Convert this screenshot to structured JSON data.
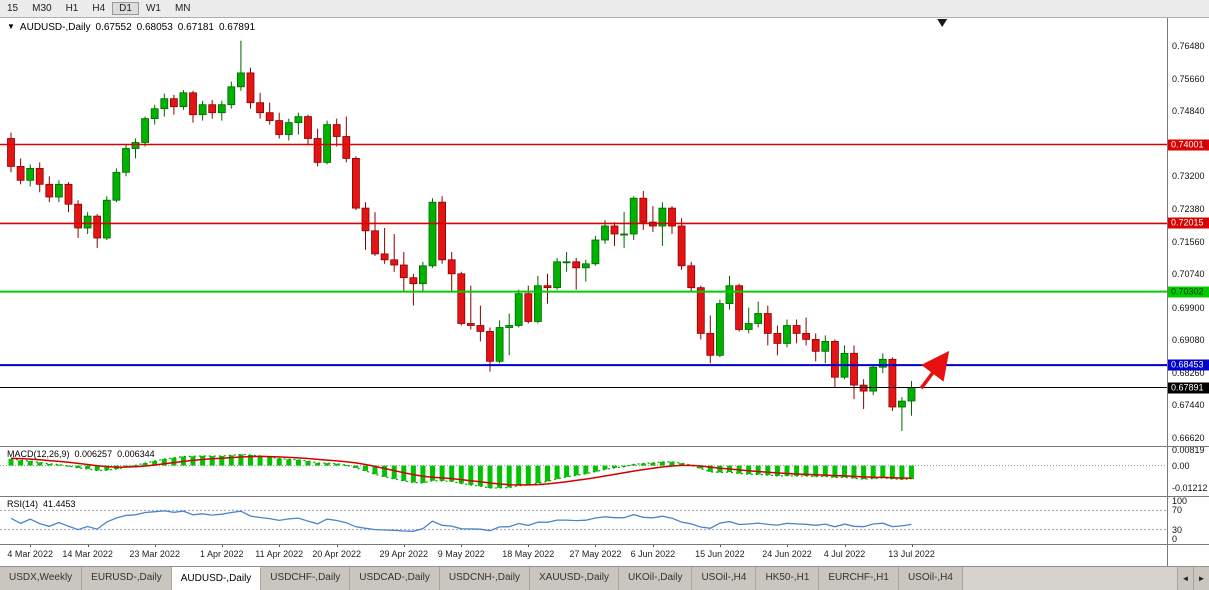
{
  "toolbar": {
    "timeframes": [
      "15",
      "M30",
      "H1",
      "H4",
      "D1",
      "W1",
      "MN"
    ],
    "active_timeframe": "D1"
  },
  "chart_header": {
    "dropdown_icon": "▼",
    "symbol": "AUDUSD-,Daily",
    "open": "0.67552",
    "high": "0.68053",
    "low": "0.67181",
    "close": "0.67891"
  },
  "chart_data": {
    "type": "candlestick",
    "symbol": "AUDUSD",
    "timeframe": "Daily",
    "price_min": 0.6642,
    "price_max": 0.7718,
    "y_axis_ticks": [
      "0.76480",
      "0.75660",
      "0.74840",
      "0.73200",
      "0.72380",
      "0.71560",
      "0.70740",
      "0.69900",
      "0.69080",
      "0.68260",
      "0.67440",
      "0.66620"
    ],
    "hlines": [
      {
        "price": 0.74001,
        "label": "0.74001",
        "color": "#d80000",
        "text_color": "#ffffff",
        "line_width": 1.6
      },
      {
        "price": 0.72015,
        "label": "0.72015",
        "color": "#d80000",
        "text_color": "#ffffff",
        "line_width": 1.6
      },
      {
        "price": 0.70302,
        "label": "0.70302",
        "color": "#00cc00",
        "text_color": "#003300",
        "line_width": 2
      },
      {
        "price": 0.68453,
        "label": "0.68453",
        "color": "#0000cc",
        "text_color": "#ffffff",
        "line_width": 2
      },
      {
        "price": 0.67891,
        "label": "0.67891",
        "color": "#000000",
        "text_color": "#ffffff",
        "line_width": 1
      }
    ],
    "x_ticks": [
      {
        "index": 2,
        "label": "4 Mar 2022"
      },
      {
        "index": 8,
        "label": "14 Mar 2022"
      },
      {
        "index": 15,
        "label": "23 Mar 2022"
      },
      {
        "index": 22,
        "label": "1 Apr 2022"
      },
      {
        "index": 28,
        "label": "11 Apr 2022"
      },
      {
        "index": 34,
        "label": "20 Apr 2022"
      },
      {
        "index": 41,
        "label": "29 Apr 2022"
      },
      {
        "index": 47,
        "label": "9 May 2022"
      },
      {
        "index": 54,
        "label": "18 May 2022"
      },
      {
        "index": 61,
        "label": "27 May 2022"
      },
      {
        "index": 67,
        "label": "6 Jun 2022"
      },
      {
        "index": 74,
        "label": "15 Jun 2022"
      },
      {
        "index": 81,
        "label": "24 Jun 2022"
      },
      {
        "index": 87,
        "label": "4 Jul 2022"
      },
      {
        "index": 94,
        "label": "13 Jul 2022"
      }
    ],
    "candles_ohlc": [
      [
        0.7415,
        0.743,
        0.733,
        0.7345
      ],
      [
        0.7345,
        0.7365,
        0.73,
        0.731
      ],
      [
        0.731,
        0.735,
        0.7295,
        0.734
      ],
      [
        0.734,
        0.7355,
        0.728,
        0.73
      ],
      [
        0.73,
        0.732,
        0.7255,
        0.7268
      ],
      [
        0.7268,
        0.731,
        0.7255,
        0.73
      ],
      [
        0.73,
        0.7305,
        0.723,
        0.725
      ],
      [
        0.725,
        0.726,
        0.7165,
        0.719
      ],
      [
        0.719,
        0.723,
        0.7175,
        0.722
      ],
      [
        0.722,
        0.7225,
        0.714,
        0.7165
      ],
      [
        0.7165,
        0.727,
        0.716,
        0.726
      ],
      [
        0.726,
        0.734,
        0.7255,
        0.733
      ],
      [
        0.733,
        0.74,
        0.732,
        0.739
      ],
      [
        0.739,
        0.7415,
        0.7365,
        0.7405
      ],
      [
        0.7405,
        0.747,
        0.7395,
        0.7465
      ],
      [
        0.7465,
        0.75,
        0.745,
        0.749
      ],
      [
        0.749,
        0.7528,
        0.747,
        0.7515
      ],
      [
        0.7515,
        0.7525,
        0.7475,
        0.7495
      ],
      [
        0.7495,
        0.7537,
        0.7487,
        0.753
      ],
      [
        0.753,
        0.7535,
        0.7455,
        0.7475
      ],
      [
        0.7475,
        0.751,
        0.746,
        0.75
      ],
      [
        0.75,
        0.7512,
        0.7465,
        0.748
      ],
      [
        0.748,
        0.751,
        0.746,
        0.75
      ],
      [
        0.75,
        0.7558,
        0.749,
        0.7545
      ],
      [
        0.7545,
        0.7661,
        0.7535,
        0.758
      ],
      [
        0.758,
        0.7593,
        0.749,
        0.7505
      ],
      [
        0.7505,
        0.753,
        0.7465,
        0.748
      ],
      [
        0.748,
        0.7505,
        0.745,
        0.746
      ],
      [
        0.746,
        0.748,
        0.7415,
        0.7425
      ],
      [
        0.7425,
        0.7465,
        0.741,
        0.7455
      ],
      [
        0.7455,
        0.748,
        0.7425,
        0.747
      ],
      [
        0.747,
        0.7475,
        0.7398,
        0.7415
      ],
      [
        0.7415,
        0.744,
        0.7345,
        0.7355
      ],
      [
        0.7355,
        0.746,
        0.735,
        0.745
      ],
      [
        0.745,
        0.7465,
        0.7395,
        0.742
      ],
      [
        0.742,
        0.747,
        0.7355,
        0.7365
      ],
      [
        0.7365,
        0.737,
        0.7235,
        0.724
      ],
      [
        0.724,
        0.7255,
        0.7135,
        0.7183
      ],
      [
        0.7183,
        0.723,
        0.712,
        0.7125
      ],
      [
        0.7125,
        0.719,
        0.71,
        0.711
      ],
      [
        0.711,
        0.7175,
        0.708,
        0.7097
      ],
      [
        0.7097,
        0.713,
        0.703,
        0.7065
      ],
      [
        0.7065,
        0.7075,
        0.6995,
        0.705
      ],
      [
        0.705,
        0.7105,
        0.703,
        0.7095
      ],
      [
        0.7095,
        0.7265,
        0.709,
        0.7255
      ],
      [
        0.7255,
        0.727,
        0.71,
        0.711
      ],
      [
        0.711,
        0.713,
        0.703,
        0.7075
      ],
      [
        0.7075,
        0.708,
        0.6945,
        0.695
      ],
      [
        0.695,
        0.7045,
        0.6935,
        0.6945
      ],
      [
        0.6945,
        0.6995,
        0.6905,
        0.693
      ],
      [
        0.693,
        0.694,
        0.6829,
        0.6855
      ],
      [
        0.6855,
        0.6958,
        0.685,
        0.694
      ],
      [
        0.694,
        0.6975,
        0.687,
        0.6945
      ],
      [
        0.6945,
        0.7035,
        0.694,
        0.7025
      ],
      [
        0.7025,
        0.7045,
        0.695,
        0.6955
      ],
      [
        0.6955,
        0.707,
        0.695,
        0.7045
      ],
      [
        0.7045,
        0.7075,
        0.7,
        0.704
      ],
      [
        0.704,
        0.7115,
        0.7035,
        0.7105
      ],
      [
        0.7105,
        0.713,
        0.708,
        0.7105
      ],
      [
        0.7105,
        0.7115,
        0.7035,
        0.709
      ],
      [
        0.709,
        0.711,
        0.7055,
        0.71
      ],
      [
        0.71,
        0.717,
        0.7095,
        0.716
      ],
      [
        0.716,
        0.721,
        0.715,
        0.7195
      ],
      [
        0.7195,
        0.7205,
        0.7145,
        0.7175
      ],
      [
        0.7175,
        0.723,
        0.714,
        0.7175
      ],
      [
        0.7175,
        0.727,
        0.716,
        0.7265
      ],
      [
        0.7265,
        0.7283,
        0.7185,
        0.7205
      ],
      [
        0.7205,
        0.7245,
        0.718,
        0.7195
      ],
      [
        0.7195,
        0.7255,
        0.7145,
        0.724
      ],
      [
        0.724,
        0.7245,
        0.7175,
        0.7195
      ],
      [
        0.7195,
        0.7215,
        0.7085,
        0.7095
      ],
      [
        0.7095,
        0.7105,
        0.703,
        0.704
      ],
      [
        0.704,
        0.7045,
        0.691,
        0.6925
      ],
      [
        0.6925,
        0.697,
        0.685,
        0.687
      ],
      [
        0.687,
        0.701,
        0.6865,
        0.7
      ],
      [
        0.7,
        0.707,
        0.6985,
        0.7045
      ],
      [
        0.7045,
        0.705,
        0.693,
        0.6935
      ],
      [
        0.6935,
        0.699,
        0.6925,
        0.695
      ],
      [
        0.695,
        0.7005,
        0.694,
        0.6975
      ],
      [
        0.6975,
        0.6995,
        0.6895,
        0.6925
      ],
      [
        0.6925,
        0.6945,
        0.687,
        0.69
      ],
      [
        0.69,
        0.696,
        0.689,
        0.6945
      ],
      [
        0.6945,
        0.696,
        0.69,
        0.6925
      ],
      [
        0.6925,
        0.6965,
        0.6895,
        0.691
      ],
      [
        0.691,
        0.6925,
        0.6855,
        0.688
      ],
      [
        0.688,
        0.692,
        0.685,
        0.6905
      ],
      [
        0.6905,
        0.691,
        0.679,
        0.6815
      ],
      [
        0.6815,
        0.6895,
        0.681,
        0.6875
      ],
      [
        0.6875,
        0.6895,
        0.676,
        0.6795
      ],
      [
        0.6795,
        0.681,
        0.6735,
        0.678
      ],
      [
        0.678,
        0.6845,
        0.677,
        0.684
      ],
      [
        0.684,
        0.6875,
        0.6825,
        0.686
      ],
      [
        0.686,
        0.6865,
        0.673,
        0.674
      ],
      [
        0.674,
        0.6765,
        0.668,
        0.6755
      ],
      [
        0.67552,
        0.68053,
        0.67181,
        0.67891
      ]
    ],
    "indicators": {
      "macd": {
        "label": "MACD(12,26,9)",
        "values_text": [
          "0.006257",
          "0.006344"
        ],
        "axis_ticks": [
          "0.00819",
          "0.00",
          "-0.01212"
        ],
        "fast": 12,
        "slow": 26,
        "signal": 9,
        "scale_max": 0.0105,
        "scale_min": -0.0163
      },
      "rsi": {
        "label": "RSI(14)",
        "value_text": "41.4453",
        "axis_ticks": [
          "100",
          "70",
          "30",
          "0"
        ],
        "period": 14,
        "levels": [
          70,
          30
        ]
      }
    },
    "annotations": [
      {
        "type": "arrow",
        "color": "#e81010",
        "from": {
          "index": 95.0,
          "price": 0.6787
        },
        "to": {
          "index": 97.5,
          "price": 0.6867
        }
      }
    ],
    "colors": {
      "bull": "#00b200",
      "bull_border": "#006600",
      "bear": "#e41414",
      "bear_border": "#8c0000",
      "macd_histogram": "#00c400",
      "macd_signal": "#d40000",
      "macd_main_dotted": "#00a000",
      "rsi_line": "#4a85c8",
      "background": "#ffffff",
      "axis_text": "#111111"
    }
  },
  "tabs": {
    "items": [
      "USDX,Weekly",
      "EURUSD-,Daily",
      "AUDUSD-,Daily",
      "USDCHF-,Daily",
      "USDCAD-,Daily",
      "USDCNH-,Daily",
      "XAUUSD-,Daily",
      "UKOil-,Daily",
      "USOil-,H4",
      "HK50-,H1",
      "EURCHF-,H1",
      "USOil-,H4"
    ],
    "active_index": 2,
    "scroll_left_icon": "◄",
    "scroll_right_icon": "►"
  }
}
